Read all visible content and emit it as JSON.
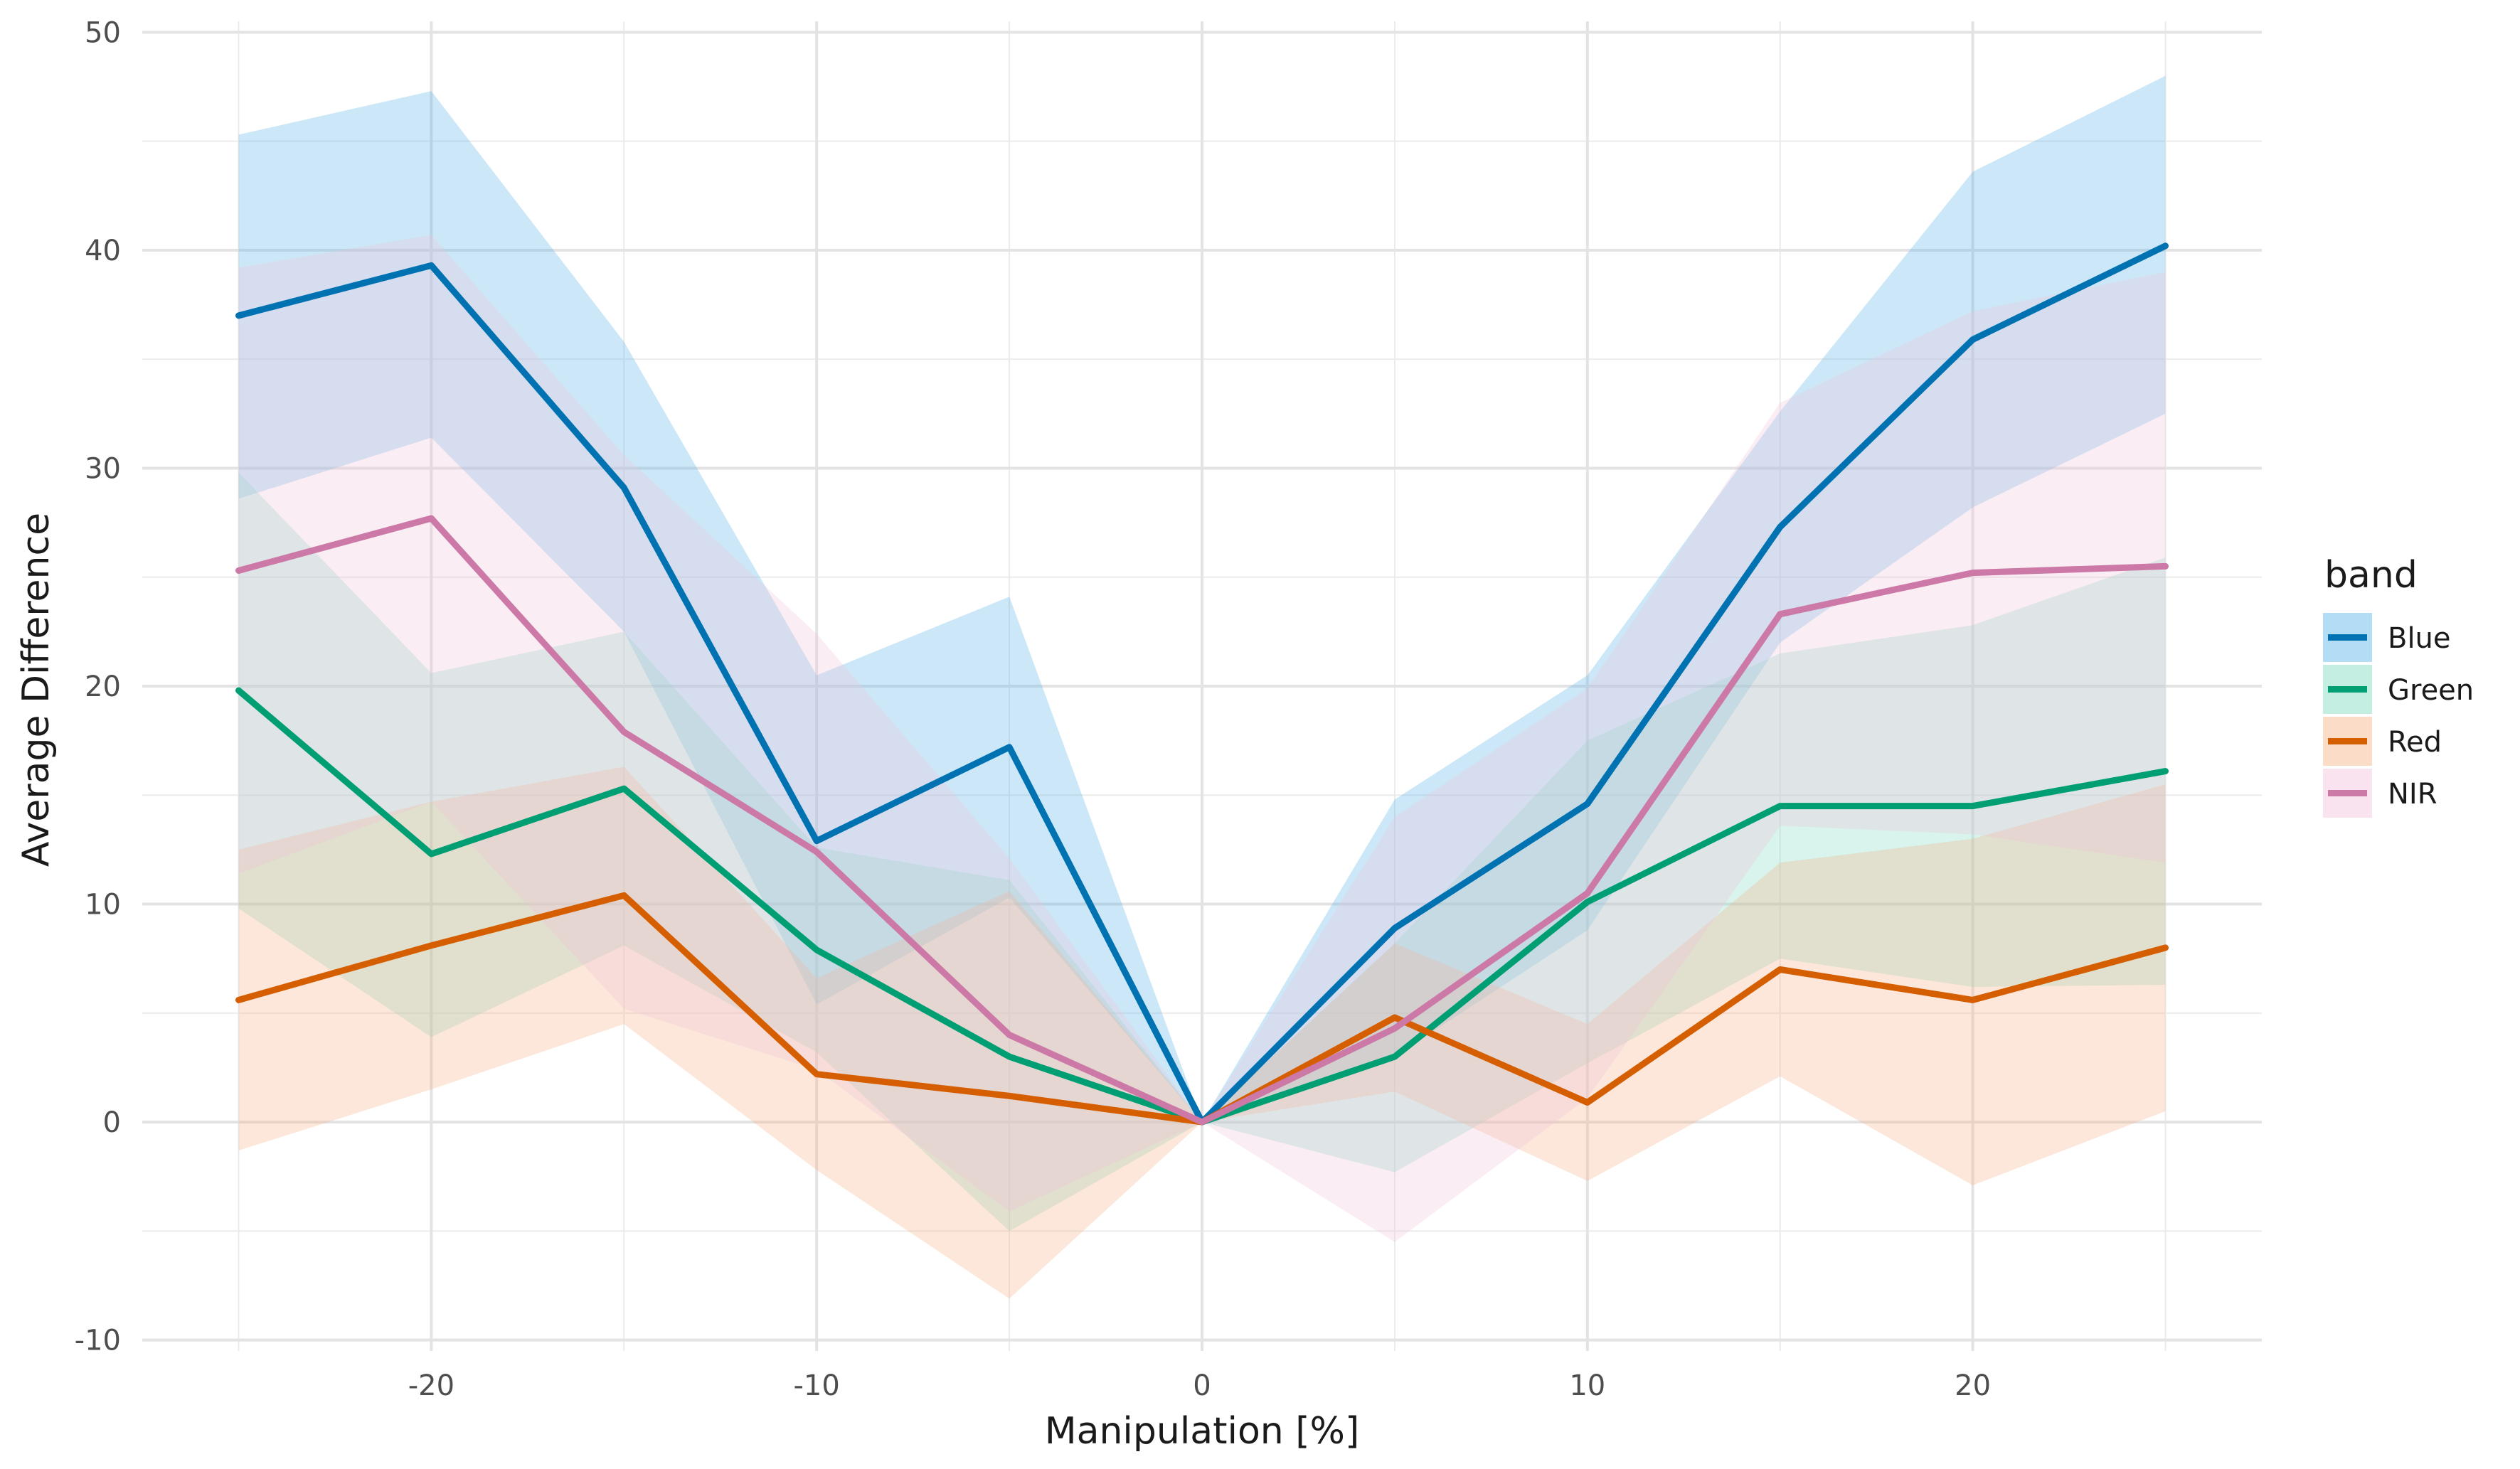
{
  "chart_data": {
    "type": "line",
    "xlabel": "Manipulation [%]",
    "ylabel": "Average Difference",
    "xlim": [
      -27.5,
      27.5
    ],
    "ylim": [
      -10.5,
      50.5
    ],
    "x_ticks": [
      -20,
      -10,
      0,
      10,
      20
    ],
    "x_tick_labels": [
      "-20",
      "-10",
      "0",
      "10",
      "20"
    ],
    "y_ticks": [
      -10,
      0,
      10,
      20,
      30,
      40,
      50
    ],
    "y_tick_labels": [
      "-10",
      "0",
      "10",
      "20",
      "30",
      "40",
      "50"
    ],
    "grid": true,
    "legend": {
      "title": "band",
      "position": "right"
    },
    "x": [
      -25,
      -20,
      -15,
      -10,
      -5,
      0,
      5,
      10,
      15,
      20,
      25
    ],
    "series": [
      {
        "name": "Blue",
        "color": "#0072B2",
        "fill": "#56B4E9",
        "values": [
          37.0,
          39.3,
          29.1,
          12.9,
          17.2,
          0,
          8.9,
          14.6,
          27.3,
          35.9,
          40.2
        ],
        "upper": [
          45.3,
          47.3,
          35.8,
          20.5,
          24.1,
          0,
          14.8,
          20.5,
          32.6,
          43.6,
          48.0
        ],
        "lower": [
          28.6,
          31.4,
          22.5,
          5.4,
          10.3,
          0,
          3.0,
          8.8,
          22.0,
          28.2,
          32.5
        ]
      },
      {
        "name": "Green",
        "color": "#009E73",
        "fill": "#7FD9C0",
        "values": [
          19.8,
          12.3,
          15.3,
          7.9,
          3.0,
          0,
          3.0,
          10.1,
          14.5,
          14.5,
          16.1
        ],
        "upper": [
          29.8,
          20.6,
          22.5,
          12.6,
          11.1,
          0,
          8.2,
          17.5,
          21.5,
          22.8,
          25.9
        ],
        "lower": [
          9.8,
          3.9,
          8.1,
          3.2,
          -5.0,
          0,
          -2.3,
          2.7,
          7.5,
          6.2,
          6.3
        ]
      },
      {
        "name": "Red",
        "color": "#D55E00",
        "fill": "#F4B183",
        "values": [
          5.6,
          8.1,
          10.4,
          2.2,
          1.2,
          0,
          4.8,
          0.9,
          7.0,
          5.6,
          8.0
        ],
        "upper": [
          12.5,
          14.7,
          16.3,
          6.6,
          10.6,
          0,
          8.2,
          4.5,
          11.9,
          13.0,
          15.5
        ],
        "lower": [
          -1.3,
          1.5,
          4.5,
          -2.2,
          -8.1,
          0,
          1.4,
          -2.7,
          2.1,
          -2.9,
          0.5
        ]
      },
      {
        "name": "NIR",
        "color": "#CC79A7",
        "fill": "#EFC2DC",
        "values": [
          25.3,
          27.7,
          17.9,
          12.4,
          4.0,
          0,
          4.3,
          10.5,
          23.3,
          25.2,
          25.5
        ],
        "upper": [
          39.2,
          40.7,
          30.6,
          22.4,
          12.1,
          0,
          14.0,
          19.9,
          33.0,
          37.2,
          39.0
        ],
        "lower": [
          11.4,
          14.7,
          5.2,
          2.4,
          -4.1,
          0,
          -5.5,
          1.1,
          13.6,
          13.2,
          11.9
        ]
      }
    ]
  }
}
